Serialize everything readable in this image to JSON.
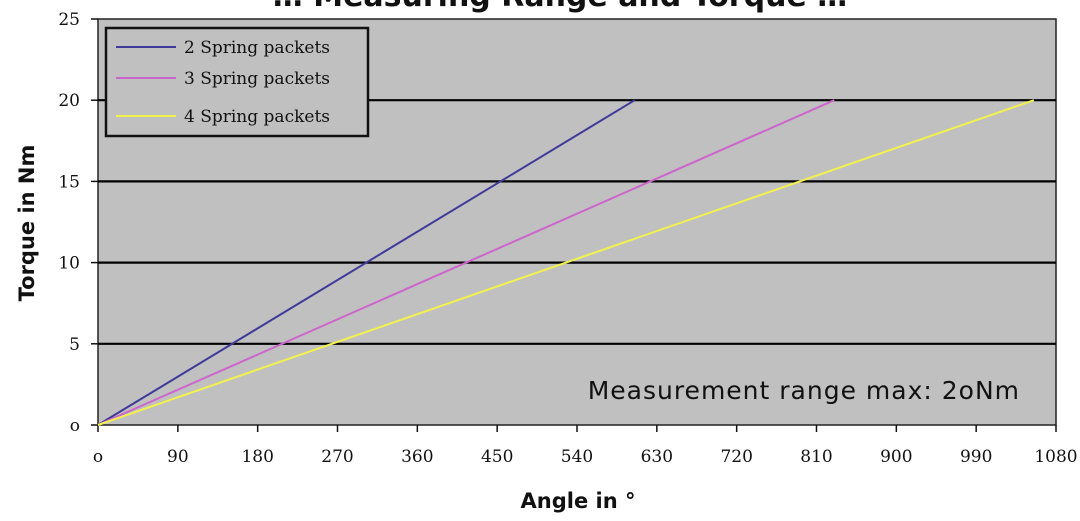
{
  "chart_data": {
    "type": "line",
    "title": "… Measuring Range and Torque …",
    "xlabel": "Angle in °",
    "ylabel": "Torque in Nm",
    "xlim": [
      0,
      1080
    ],
    "ylim": [
      0,
      25
    ],
    "xticks": [
      0,
      90,
      180,
      270,
      360,
      450,
      540,
      630,
      720,
      810,
      900,
      990,
      1080
    ],
    "yticks": [
      0,
      5,
      10,
      15,
      20,
      25
    ],
    "xtick_labels": [
      "o",
      "90",
      "180",
      "270",
      "360",
      "450",
      "540",
      "630",
      "720",
      "810",
      "900",
      "990",
      "1080"
    ],
    "ytick_labels": [
      "o",
      "5",
      "10",
      "15",
      "20",
      "25"
    ],
    "grid": "horizontal",
    "gridline_values": [
      5,
      10,
      15,
      20
    ],
    "plot_background": "#c0c0c0",
    "legend_position": "top-left",
    "series": [
      {
        "name": "2 Spring packets",
        "color": "#3f3a99",
        "x": [
          0,
          605
        ],
        "y": [
          0,
          20
        ]
      },
      {
        "name": "3 Spring packets",
        "color": "#cc66cc",
        "x": [
          0,
          830
        ],
        "y": [
          0,
          20
        ]
      },
      {
        "name": "4 Spring packets",
        "color": "#f2f24d",
        "x": [
          0,
          1055
        ],
        "y": [
          0,
          20
        ]
      }
    ],
    "annotation": "Measurement range max: 2oNm"
  }
}
